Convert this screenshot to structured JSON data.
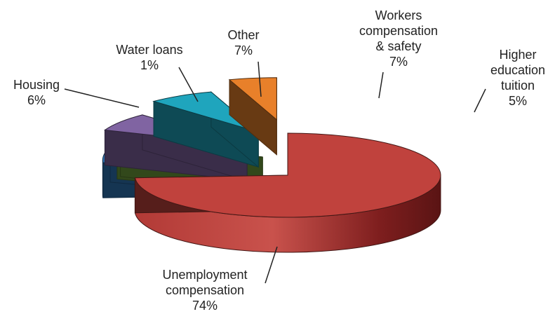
{
  "chart_data": {
    "type": "pie",
    "style": "3d-exploded",
    "title": "",
    "legend": "none",
    "slices": [
      {
        "name": "Unemployment compensation",
        "lines": [
          "Unemployment",
          "compensation"
        ],
        "pct_label": "74%",
        "value": 74,
        "color": "#c0423d"
      },
      {
        "name": "Housing",
        "lines": [
          "Housing"
        ],
        "pct_label": "6%",
        "value": 6,
        "color": "#2e75b6"
      },
      {
        "name": "Water loans",
        "lines": [
          "Water loans"
        ],
        "pct_label": "1%",
        "value": 1,
        "color": "#70a03c"
      },
      {
        "name": "Other",
        "lines": [
          "Other"
        ],
        "pct_label": "7%",
        "value": 7,
        "color": "#8064a2"
      },
      {
        "name": "Workers compensation & safety",
        "lines": [
          "Workers",
          "compensation",
          "& safety"
        ],
        "pct_label": "7%",
        "value": 7,
        "color": "#1fa5bd"
      },
      {
        "name": "Higher education tuition",
        "lines": [
          "Higher",
          "education",
          "tuition"
        ],
        "pct_label": "5%",
        "value": 5,
        "color": "#e8802a"
      }
    ]
  }
}
